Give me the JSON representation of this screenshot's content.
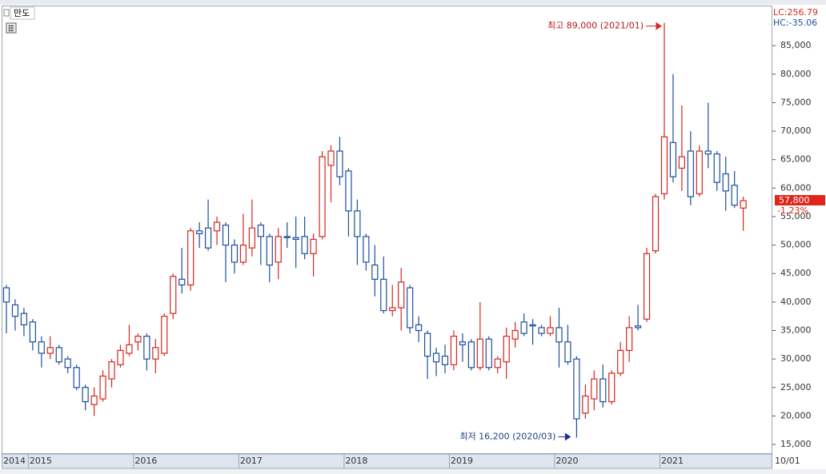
{
  "chart_data": {
    "type": "candlestick",
    "title": "만도",
    "categories": [
      "2014",
      null,
      null,
      "2015",
      null,
      null,
      null,
      null,
      null,
      null,
      null,
      null,
      null,
      null,
      null,
      "2016",
      null,
      null,
      null,
      null,
      null,
      null,
      null,
      null,
      null,
      null,
      null,
      "2017",
      null,
      null,
      null,
      null,
      null,
      null,
      null,
      null,
      null,
      null,
      null,
      "2018",
      null,
      null,
      null,
      null,
      null,
      null,
      null,
      null,
      null,
      null,
      null,
      "2019",
      null,
      null,
      null,
      null,
      null,
      null,
      null,
      null,
      null,
      null,
      null,
      "2020",
      null,
      null,
      null,
      null,
      null,
      null,
      null,
      null,
      null,
      null,
      null,
      "2021",
      null,
      null,
      null,
      null,
      null,
      null,
      null,
      null,
      "10/01"
    ],
    "open": [
      42500,
      39500,
      38000,
      36500,
      33000,
      31000,
      32000,
      30000,
      28500,
      25000,
      22000,
      23000,
      26500,
      29000,
      31000,
      33000,
      34000,
      30000,
      31000,
      38000,
      44000,
      43000,
      52500,
      53000,
      52500,
      53500,
      50000,
      47000,
      49500,
      53500,
      51500,
      47000,
      51500,
      51300,
      51500,
      48500,
      51500,
      64000,
      66500,
      63000,
      56000,
      51500,
      46500,
      44000,
      38500,
      39000,
      42500,
      36000,
      34500,
      31000,
      30500,
      29000,
      33000,
      33000,
      28500,
      33500,
      28500,
      29500,
      33500,
      36500,
      36000,
      35500,
      34500,
      35500,
      33000,
      30000,
      20500,
      23000,
      26500,
      22500,
      27500,
      31500,
      35800,
      37000,
      49000,
      59000,
      68000,
      63500,
      66500,
      59000,
      66500,
      66000,
      62500,
      60500,
      56500
    ],
    "high": [
      43000,
      40500,
      39000,
      37000,
      34000,
      34000,
      32500,
      30500,
      29000,
      25500,
      25000,
      28000,
      30000,
      32500,
      36000,
      34500,
      34500,
      33500,
      38000,
      45000,
      49500,
      53000,
      54000,
      58000,
      55000,
      54000,
      51000,
      55500,
      58000,
      54000,
      52000,
      53000,
      54000,
      55000,
      55000,
      52000,
      66500,
      67500,
      69000,
      63500,
      58000,
      52000,
      50000,
      48000,
      43000,
      46000,
      43000,
      37500,
      35000,
      32000,
      32500,
      35000,
      34500,
      33500,
      40000,
      34000,
      30500,
      35500,
      36500,
      38000,
      37000,
      36000,
      37500,
      39000,
      36000,
      30500,
      25500,
      28000,
      29000,
      28000,
      33000,
      37500,
      39500,
      49500,
      59000,
      89000,
      80000,
      74500,
      70000,
      67500,
      75000,
      66500,
      65500,
      63000,
      58500
    ],
    "low": [
      34500,
      35000,
      34000,
      31500,
      28500,
      30000,
      29000,
      27500,
      24500,
      21000,
      20000,
      22500,
      25000,
      28500,
      30500,
      31500,
      28000,
      27500,
      30500,
      37000,
      41500,
      42000,
      49500,
      49000,
      50000,
      43500,
      45000,
      46500,
      48000,
      46500,
      43500,
      44000,
      49500,
      46000,
      47500,
      44500,
      51000,
      57500,
      60500,
      51500,
      46500,
      45500,
      41000,
      38000,
      37500,
      35000,
      34500,
      33000,
      26500,
      27000,
      27500,
      28000,
      29500,
      28000,
      28000,
      28000,
      27500,
      26500,
      32000,
      34000,
      32500,
      34000,
      34000,
      28500,
      29000,
      16200,
      19500,
      21000,
      21500,
      22000,
      27000,
      29500,
      35000,
      36500,
      48500,
      58000,
      61000,
      59500,
      57000,
      58500,
      63500,
      59500,
      56000,
      56500,
      52500
    ],
    "close": [
      40000,
      37500,
      36000,
      33000,
      31000,
      32000,
      29500,
      28500,
      25000,
      22500,
      23500,
      27000,
      29500,
      31500,
      32500,
      34000,
      30000,
      32000,
      37500,
      44500,
      43000,
      52500,
      52000,
      49500,
      54000,
      50000,
      47000,
      50000,
      53000,
      51500,
      46500,
      51500,
      51300,
      51000,
      48500,
      51000,
      65500,
      66500,
      62000,
      56000,
      51500,
      47000,
      44000,
      38500,
      39000,
      43500,
      35500,
      35000,
      30500,
      29500,
      29000,
      34000,
      32500,
      28500,
      33500,
      28500,
      30000,
      34000,
      35000,
      34500,
      35800,
      34500,
      35500,
      33000,
      29500,
      19500,
      23500,
      26500,
      22500,
      27500,
      31500,
      35500,
      35500,
      48500,
      58500,
      69000,
      62000,
      65500,
      58500,
      66500,
      66000,
      61000,
      59500,
      57000,
      57800
    ],
    "up_color": "#d7261e",
    "down_color": "#1c4f9c",
    "ylim": [
      13600,
      91900
    ],
    "yticks": [
      {
        "value": 15000,
        "label": "15,000"
      },
      {
        "value": 20000,
        "label": "20,000"
      },
      {
        "value": 25000,
        "label": "25,000"
      },
      {
        "value": 30000,
        "label": "30,000"
      },
      {
        "value": 35000,
        "label": "35,000"
      },
      {
        "value": 40000,
        "label": "40,000"
      },
      {
        "value": 45000,
        "label": "45,000"
      },
      {
        "value": 50000,
        "label": "50,000"
      },
      {
        "value": 55000,
        "label": "55,000"
      },
      {
        "value": 60000,
        "label": "60,000"
      },
      {
        "value": 65000,
        "label": "65,000"
      },
      {
        "value": 70000,
        "label": "70,000"
      },
      {
        "value": 75000,
        "label": "75,000"
      },
      {
        "value": 80000,
        "label": "80,000"
      },
      {
        "value": 85000,
        "label": "85,000"
      }
    ],
    "last_price": {
      "value": 57800,
      "label": "57,800"
    },
    "change_label": "-1.23%",
    "lc_label": "LC:256.79",
    "hc_label": "HC:-35.06",
    "annotations": {
      "high": "최고 89,000 (2021/01)",
      "low": "최저 16,200 (2020/03)"
    }
  }
}
